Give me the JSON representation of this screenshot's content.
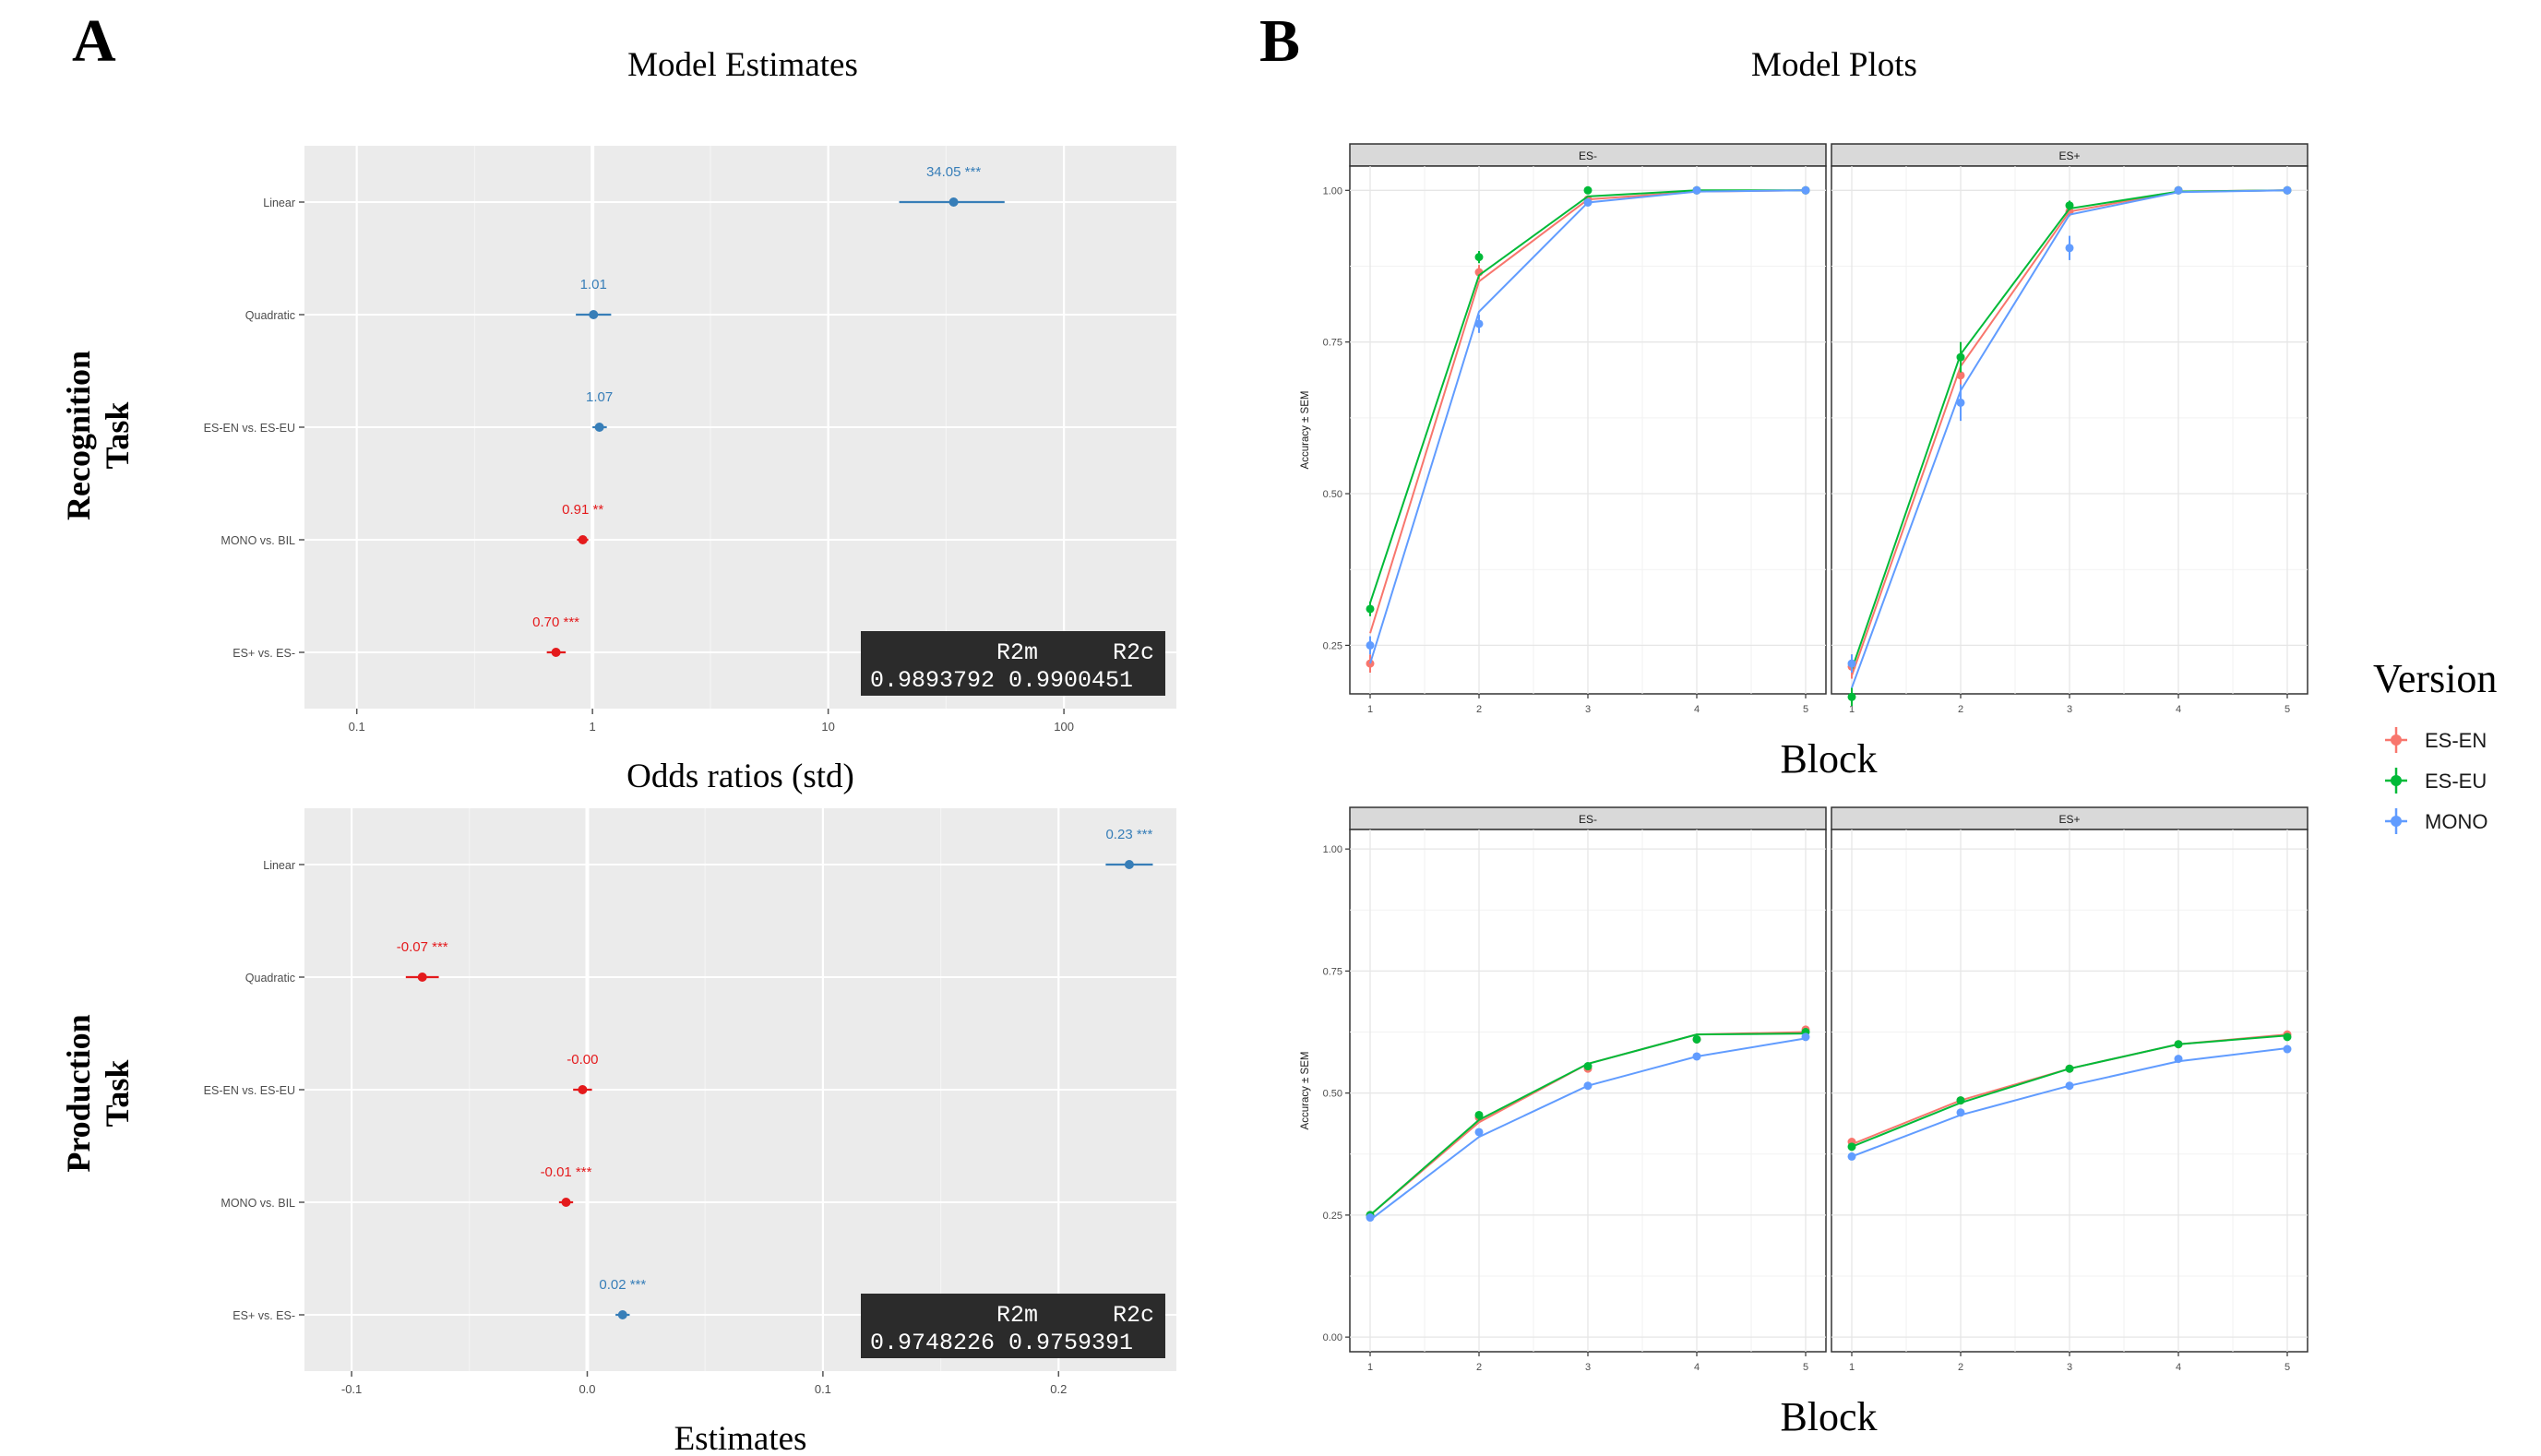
{
  "panels": {
    "a_letter": "A",
    "b_letter": "B",
    "a_title": "Model Estimates",
    "b_title": "Model Plots",
    "row1_label_line1": "Recognition",
    "row1_label_line2": "Task",
    "row2_label_line1": "Production",
    "row2_label_line2": "Task"
  },
  "colors": {
    "positive": "#377eb8",
    "negative": "#e41a1c",
    "ES-EN": "#F8766D",
    "ES-EU": "#00BA38",
    "MONO": "#619CFF",
    "panel_bg": "#ebebeb",
    "strip_bg": "#d9d9d9",
    "r2_box_bg": "#2b2b2b"
  },
  "chart_data": [
    {
      "type": "scatter",
      "id": "recognition-estimates",
      "xlabel": "Odds ratios (std)",
      "xscale": "log",
      "xlim": [
        0.06,
        300
      ],
      "xticks": [
        0.1,
        1,
        10,
        100
      ],
      "xtick_labels": [
        "0.1",
        "1",
        "10",
        "100"
      ],
      "reference_line": 1,
      "terms": [
        {
          "term": "Linear",
          "estimate": 34.05,
          "ci": [
            20,
            56
          ],
          "label": "34.05 ***",
          "sign": "positive"
        },
        {
          "term": "Quadratic",
          "estimate": 1.01,
          "ci": [
            0.85,
            1.2
          ],
          "label": "1.01",
          "sign": "positive"
        },
        {
          "term": "ES-EN vs. ES-EU",
          "estimate": 1.07,
          "ci": [
            1.0,
            1.15
          ],
          "label": "1.07",
          "sign": "positive"
        },
        {
          "term": "MONO vs. BIL",
          "estimate": 0.91,
          "ci": [
            0.86,
            0.96
          ],
          "label": "0.91 **",
          "sign": "negative"
        },
        {
          "term": "ES+ vs. ES-",
          "estimate": 0.7,
          "ci": [
            0.64,
            0.77
          ],
          "label": "0.70 ***",
          "sign": "negative"
        }
      ],
      "r2": {
        "header_m": "R2m",
        "header_c": "R2c",
        "r2m": "0.9893792",
        "r2c": "0.9900451"
      }
    },
    {
      "type": "scatter",
      "id": "production-estimates",
      "xlabel": "Estimates",
      "xscale": "linear",
      "xlim": [
        -0.12,
        0.25
      ],
      "xticks": [
        -0.1,
        0.0,
        0.1,
        0.2
      ],
      "xtick_labels": [
        "-0.1",
        "0.0",
        "0.1",
        "0.2"
      ],
      "reference_line": 0,
      "terms": [
        {
          "term": "Linear",
          "estimate": 0.23,
          "ci": [
            0.22,
            0.24
          ],
          "label": "0.23 ***",
          "sign": "positive"
        },
        {
          "term": "Quadratic",
          "estimate": -0.07,
          "ci": [
            -0.077,
            -0.063
          ],
          "label": "-0.07 ***",
          "sign": "negative"
        },
        {
          "term": "ES-EN vs. ES-EU",
          "estimate": -0.002,
          "ci": [
            -0.006,
            0.002
          ],
          "label": "-0.00",
          "sign": "negative"
        },
        {
          "term": "MONO vs. BIL",
          "estimate": -0.009,
          "ci": [
            -0.012,
            -0.006
          ],
          "label": "-0.01 ***",
          "sign": "negative"
        },
        {
          "term": "ES+ vs. ES-",
          "estimate": 0.015,
          "ci": [
            0.012,
            0.018
          ],
          "label": "0.02 ***",
          "sign": "positive"
        }
      ],
      "r2": {
        "header_m": "R2m",
        "header_c": "R2c",
        "r2m": "0.9748226",
        "r2c": "0.9759391"
      }
    },
    {
      "type": "line",
      "id": "recognition-model-plot",
      "xlabel": "Block",
      "ylabel": "Accuracy ± SEM",
      "ylim": [
        0.17,
        1.04
      ],
      "yticks": [
        0.25,
        0.5,
        0.75,
        1.0
      ],
      "ytick_labels": [
        "0.25",
        "0.50",
        "0.75",
        "1.00"
      ],
      "x": [
        1,
        2,
        3,
        4,
        5
      ],
      "facets": [
        {
          "strip": "ES-",
          "series": [
            {
              "name": "ES-EN",
              "points": [
                0.22,
                0.865,
                0.985,
                1.0,
                1.0
              ],
              "se": [
                0.015,
                0.012,
                0.005,
                0.002,
                0.002
              ],
              "fit": [
                0.27,
                0.85,
                0.985,
                0.998,
                1.0
              ]
            },
            {
              "name": "ES-EU",
              "points": [
                0.31,
                0.89,
                1.0,
                1.0,
                1.0
              ],
              "se": [
                0.012,
                0.01,
                0.003,
                0.002,
                0.002
              ],
              "fit": [
                0.32,
                0.86,
                0.99,
                1.0,
                1.0
              ]
            },
            {
              "name": "MONO",
              "points": [
                0.25,
                0.78,
                0.98,
                1.0,
                1.0
              ],
              "se": [
                0.015,
                0.015,
                0.005,
                0.002,
                0.002
              ],
              "fit": [
                0.22,
                0.8,
                0.98,
                0.998,
                1.0
              ]
            }
          ]
        },
        {
          "strip": "ES+",
          "series": [
            {
              "name": "ES-EN",
              "points": [
                0.215,
                0.695,
                0.965,
                1.0,
                1.0
              ],
              "se": [
                0.02,
                0.02,
                0.008,
                0.002,
                0.002
              ],
              "fit": [
                0.2,
                0.71,
                0.965,
                0.998,
                1.0
              ]
            },
            {
              "name": "ES-EU",
              "points": [
                0.165,
                0.725,
                0.975,
                1.0,
                1.0
              ],
              "se": [
                0.015,
                0.025,
                0.008,
                0.002,
                0.002
              ],
              "fit": [
                0.21,
                0.73,
                0.97,
                0.998,
                1.0
              ]
            },
            {
              "name": "MONO",
              "points": [
                0.22,
                0.65,
                0.905,
                1.0,
                1.0
              ],
              "se": [
                0.015,
                0.03,
                0.02,
                0.003,
                0.002
              ],
              "fit": [
                0.18,
                0.67,
                0.96,
                0.997,
                1.0
              ]
            }
          ]
        }
      ]
    },
    {
      "type": "line",
      "id": "production-model-plot",
      "xlabel": "Block",
      "ylabel": "Accuracy ± SEM",
      "ylim": [
        -0.03,
        1.04
      ],
      "yticks": [
        0.0,
        0.25,
        0.5,
        0.75,
        1.0
      ],
      "ytick_labels": [
        "0.00",
        "0.25",
        "0.50",
        "0.75",
        "1.00"
      ],
      "x": [
        1,
        2,
        3,
        4,
        5
      ],
      "facets": [
        {
          "strip": "ES-",
          "series": [
            {
              "name": "ES-EN",
              "points": [
                0.25,
                0.45,
                0.55,
                0.61,
                0.63
              ],
              "se": [
                0.004,
                0.004,
                0.004,
                0.004,
                0.004
              ],
              "fit": [
                0.25,
                0.44,
                0.56,
                0.62,
                0.625
              ]
            },
            {
              "name": "ES-EU",
              "points": [
                0.25,
                0.455,
                0.555,
                0.61,
                0.625
              ],
              "se": [
                0.004,
                0.004,
                0.004,
                0.004,
                0.004
              ],
              "fit": [
                0.25,
                0.445,
                0.56,
                0.62,
                0.622
              ]
            },
            {
              "name": "MONO",
              "points": [
                0.245,
                0.42,
                0.515,
                0.575,
                0.615
              ],
              "se": [
                0.004,
                0.004,
                0.004,
                0.004,
                0.004
              ],
              "fit": [
                0.24,
                0.41,
                0.515,
                0.575,
                0.612
              ]
            }
          ]
        },
        {
          "strip": "ES+",
          "series": [
            {
              "name": "ES-EN",
              "points": [
                0.4,
                0.485,
                0.55,
                0.6,
                0.62
              ],
              "se": [
                0.004,
                0.004,
                0.004,
                0.004,
                0.004
              ],
              "fit": [
                0.395,
                0.485,
                0.55,
                0.6,
                0.62
              ]
            },
            {
              "name": "ES-EU",
              "points": [
                0.39,
                0.485,
                0.55,
                0.6,
                0.615
              ],
              "se": [
                0.004,
                0.004,
                0.004,
                0.004,
                0.004
              ],
              "fit": [
                0.39,
                0.48,
                0.55,
                0.6,
                0.618
              ]
            },
            {
              "name": "MONO",
              "points": [
                0.37,
                0.46,
                0.515,
                0.57,
                0.59
              ],
              "se": [
                0.004,
                0.004,
                0.004,
                0.004,
                0.004
              ],
              "fit": [
                0.37,
                0.455,
                0.515,
                0.565,
                0.592
              ]
            }
          ]
        }
      ]
    }
  ],
  "legend": {
    "title": "Version",
    "items": [
      "ES-EN",
      "ES-EU",
      "MONO"
    ]
  }
}
